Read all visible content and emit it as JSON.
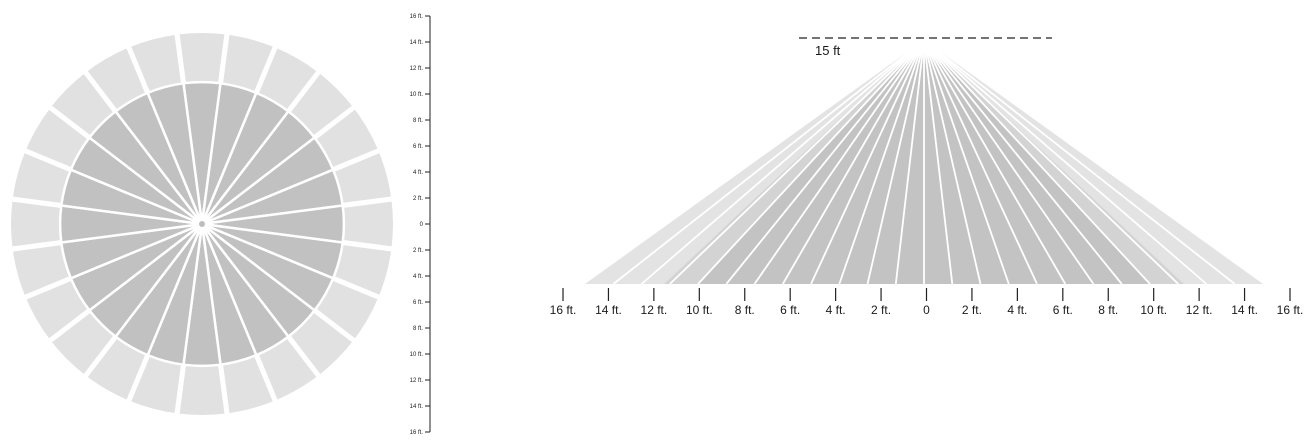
{
  "colors": {
    "outer_ring": "#e1e1e1",
    "inner_ring": "#c1c1c1",
    "side_outer": "#e3e3e3",
    "side_mid": "#d3d3d3",
    "side_inner": "#c3c3c3",
    "gap": "#ffffff",
    "axis": "#222222"
  },
  "top_view": {
    "segments": 24,
    "outer_radius_ft": 15,
    "inner_radius_ft": 11,
    "vertical_scale": {
      "ticks": [
        "16 ft.",
        "14 ft.",
        "12 ft.",
        "10 ft.",
        "8 ft.",
        "6 ft.",
        "4 ft.",
        "2 ft.",
        "0",
        "2 ft.",
        "4 ft.",
        "6 ft.",
        "8 ft.",
        "10 ft.",
        "12 ft.",
        "14 ft.",
        "16 ft."
      ]
    }
  },
  "side_view": {
    "mount_height_label": "15 ft",
    "mount_height_ft": 15,
    "zones_half_width_ft": [
      15,
      11.5,
      10
    ],
    "beam_count": 24,
    "horizontal_scale": {
      "ticks": [
        "16 ft.",
        "14 ft.",
        "12 ft.",
        "10 ft.",
        "8 ft.",
        "6 ft.",
        "4 ft.",
        "2 ft.",
        "0",
        "2 ft.",
        "4 ft.",
        "6 ft.",
        "8 ft.",
        "10 ft.",
        "12 ft.",
        "14 ft.",
        "16 ft."
      ]
    }
  }
}
